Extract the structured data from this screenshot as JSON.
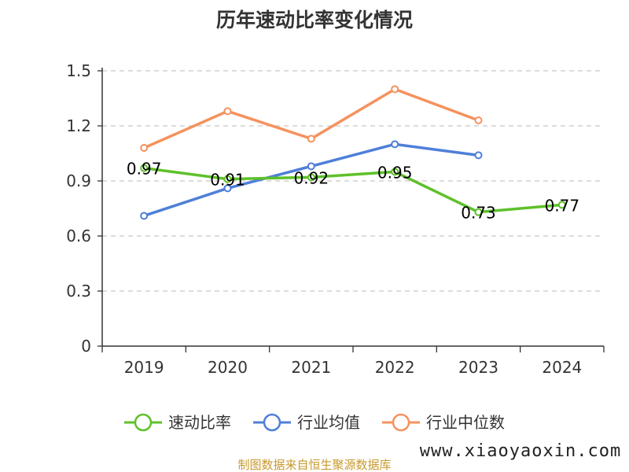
{
  "title": "历年速动比率变化情况",
  "footer": {
    "text": "制图数据来自恒生聚源数据库",
    "color": "#c89a2d"
  },
  "watermark": "www.xiaoyaoxin.com",
  "chart_data": {
    "type": "line",
    "title": "历年速动比率变化情况",
    "categories": [
      "2019",
      "2020",
      "2021",
      "2022",
      "2023",
      "2024"
    ],
    "y_ticks": [
      "0",
      "0.3",
      "0.6",
      "0.9",
      "1.2",
      "1.5"
    ],
    "ylim": [
      0,
      1.5
    ],
    "grid": true,
    "legend_position": "bottom",
    "series": [
      {
        "name": "速动比率",
        "color": "#5ec12a",
        "show_labels": true,
        "values": [
          0.97,
          0.91,
          0.92,
          0.95,
          0.73,
          0.77
        ],
        "labels": [
          "0.97",
          "0.91",
          "0.92",
          "0.95",
          "0.73",
          "0.77"
        ]
      },
      {
        "name": "行业均值",
        "color": "#4f7fd9",
        "show_labels": false,
        "values": [
          0.71,
          0.86,
          0.98,
          1.1,
          1.04,
          null
        ]
      },
      {
        "name": "行业中位数",
        "color": "#f5925e",
        "show_labels": false,
        "values": [
          1.08,
          1.28,
          1.13,
          1.4,
          1.23,
          null
        ]
      }
    ]
  }
}
